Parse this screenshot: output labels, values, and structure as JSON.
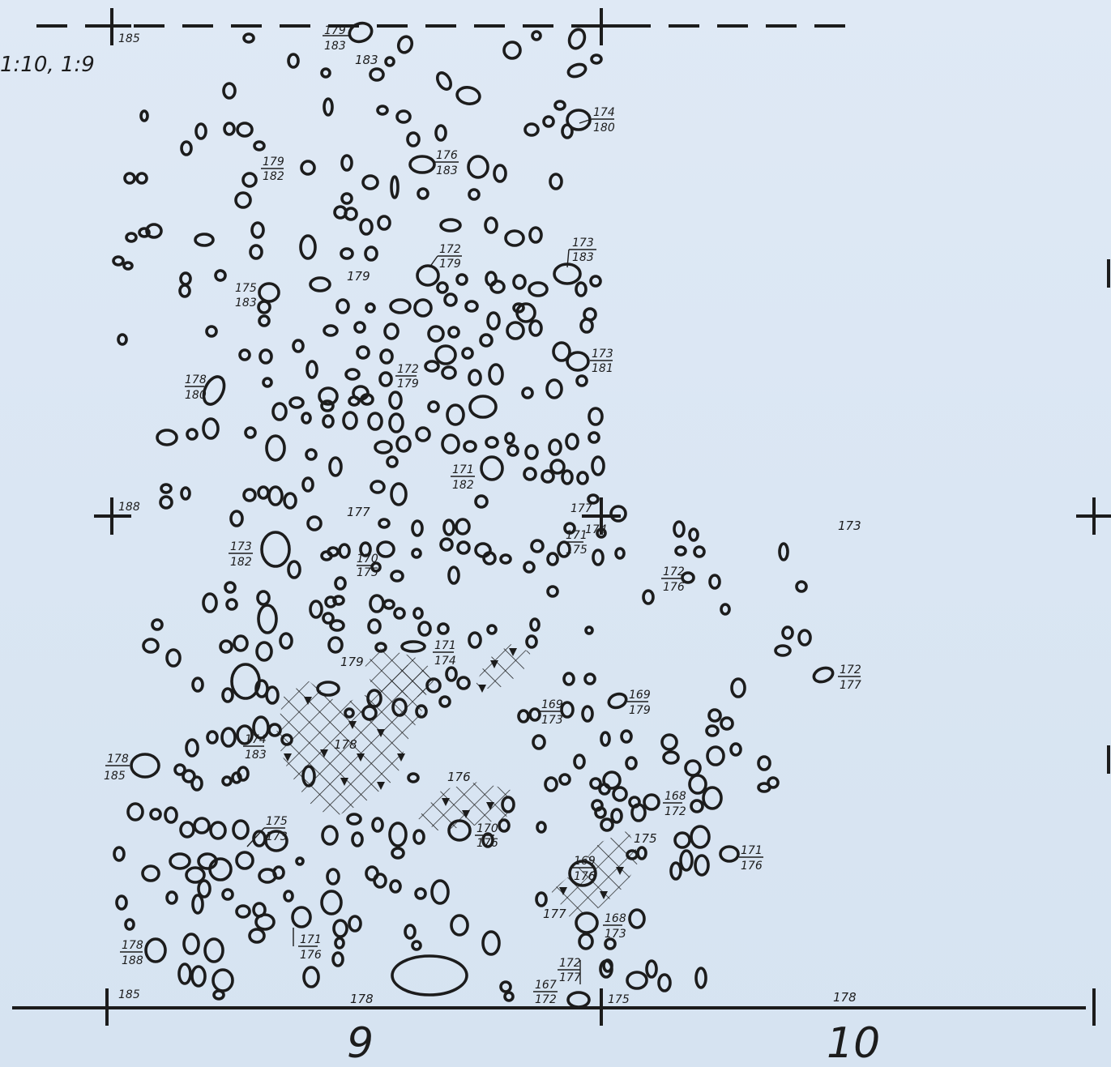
{
  "scale_label": "1:10, 1:9",
  "grid_numbers": {
    "left": "9",
    "right": "10"
  },
  "corner_levels": {
    "top_left": "185",
    "mid_left": "188",
    "bottom_left": "185",
    "bottom_mid": "175"
  },
  "spot_levels": [
    {
      "id": "sl1",
      "text": "183"
    },
    {
      "id": "sl2",
      "text": "179"
    },
    {
      "id": "sl3",
      "text": "177"
    },
    {
      "id": "sl4",
      "text": "173"
    },
    {
      "id": "sl5",
      "text": "179"
    },
    {
      "id": "sl6",
      "text": "178"
    },
    {
      "id": "sl7",
      "text": "176"
    },
    {
      "id": "sl8",
      "text": "178"
    },
    {
      "id": "sl9",
      "text": "178"
    },
    {
      "id": "sl10",
      "text": "177"
    },
    {
      "id": "sl11",
      "text": "175"
    }
  ],
  "stone_labels": [
    {
      "id": "f1",
      "top": "179",
      "bottom": "183"
    },
    {
      "id": "f2",
      "top": "174",
      "bottom": "180"
    },
    {
      "id": "f3",
      "top": "176",
      "bottom": "183"
    },
    {
      "id": "f4",
      "top": "179",
      "bottom": "182"
    },
    {
      "id": "f5",
      "top": "172",
      "bottom": "179"
    },
    {
      "id": "f6",
      "top": "173",
      "bottom": "183"
    },
    {
      "id": "f7",
      "top": "175",
      "bottom": "183"
    },
    {
      "id": "f8",
      "top": "173",
      "bottom": "181"
    },
    {
      "id": "f9",
      "top": "172",
      "bottom": "179"
    },
    {
      "id": "f10",
      "top": "178",
      "bottom": "180"
    },
    {
      "id": "f11",
      "top": "171",
      "bottom": "182"
    },
    {
      "id": "f12",
      "top": "177",
      "bottom": "174"
    },
    {
      "id": "f13",
      "top": "173",
      "bottom": "182"
    },
    {
      "id": "f14",
      "top": "170",
      "bottom": "175"
    },
    {
      "id": "f15",
      "top": "171",
      "bottom": "175"
    },
    {
      "id": "f16",
      "top": "172",
      "bottom": "176"
    },
    {
      "id": "f17",
      "top": "171",
      "bottom": "174"
    },
    {
      "id": "f18",
      "top": "172",
      "bottom": "177"
    },
    {
      "id": "f19",
      "top": "169",
      "bottom": "173"
    },
    {
      "id": "f20",
      "top": "169",
      "bottom": "179"
    },
    {
      "id": "f21",
      "top": "174",
      "bottom": "183"
    },
    {
      "id": "f22",
      "top": "178",
      "bottom": "185"
    },
    {
      "id": "f23",
      "top": "168",
      "bottom": "172"
    },
    {
      "id": "f24",
      "top": "170",
      "bottom": "176"
    },
    {
      "id": "f25",
      "top": "175",
      "bottom": "173"
    },
    {
      "id": "f26",
      "top": "169",
      "bottom": "176"
    },
    {
      "id": "f27",
      "top": "171",
      "bottom": "176"
    },
    {
      "id": "f28",
      "top": "168",
      "bottom": "173"
    },
    {
      "id": "f29",
      "top": "178",
      "bottom": "188"
    },
    {
      "id": "f30",
      "top": "171",
      "bottom": "176"
    },
    {
      "id": "f31",
      "top": "172",
      "bottom": "177"
    },
    {
      "id": "f32",
      "top": "167",
      "bottom": "172"
    }
  ]
}
